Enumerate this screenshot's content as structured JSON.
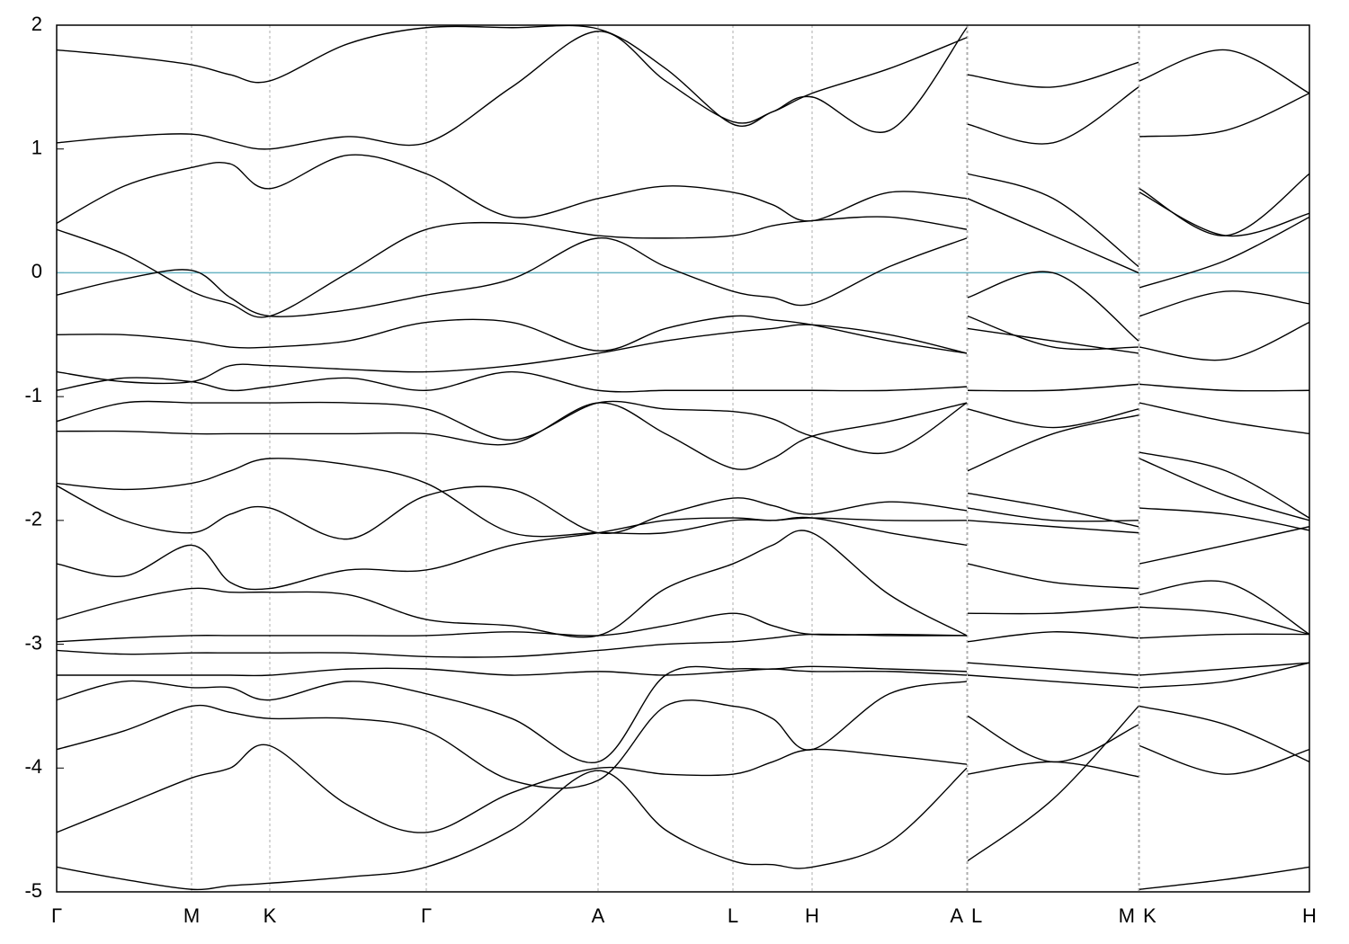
{
  "chart_data": {
    "type": "line",
    "color": "#000000",
    "hline": {
      "value": 0,
      "color": "#6ab4c4"
    },
    "grid": true,
    "xlim": [
      0,
      13.93
    ],
    "ylim": [
      -5,
      2
    ],
    "yticks": [
      -5,
      -4,
      -3,
      -2,
      -1,
      0,
      1,
      2
    ],
    "xticks": [
      {
        "value": 0,
        "label": "Γ"
      },
      {
        "value": 1.5,
        "label": "M"
      },
      {
        "value": 2.37,
        "label": "K"
      },
      {
        "value": 4.11,
        "label": "Γ"
      },
      {
        "value": 6.02,
        "label": "A"
      },
      {
        "value": 7.52,
        "label": "L"
      },
      {
        "value": 8.4,
        "label": "H"
      },
      {
        "value": 10.12,
        "label": "A"
      },
      {
        "value": 10.13,
        "label": "L"
      },
      {
        "value": 12.03,
        "label": "M"
      },
      {
        "value": 12.04,
        "label": "K"
      },
      {
        "value": 13.93,
        "label": "H"
      }
    ],
    "x": [
      0,
      0.75,
      1.5,
      1.93,
      2.37,
      3.24,
      4.11,
      5.06,
      6.02,
      6.77,
      7.52,
      7.96,
      8.4,
      9.26,
      10.12,
      10.125,
      10.13,
      11.08,
      12.03,
      12.035,
      12.04,
      13.0,
      13.93
    ],
    "series": [
      {
        "values": [
          -4.8,
          -4.9,
          -4.98,
          -4.95,
          -4.93,
          -4.88,
          -4.8,
          -4.5,
          -4.02,
          -4.5,
          -4.75,
          -4.78,
          -4.8,
          -4.6,
          -4.0,
          null,
          -4.75,
          -4.25,
          -3.5,
          null,
          -4.98,
          -4.9,
          -4.8
        ]
      },
      {
        "values": [
          -4.52,
          -4.3,
          -4.08,
          -4.0,
          -3.82,
          -4.3,
          -4.52,
          -4.2,
          -4.0,
          -4.05,
          -4.05,
          -3.95,
          -3.85,
          -3.9,
          -3.97,
          null,
          -4.05,
          -3.95,
          -4.07,
          null,
          -3.82,
          -4.05,
          -3.85
        ]
      },
      {
        "values": [
          -3.85,
          -3.7,
          -3.5,
          -3.55,
          -3.6,
          -3.6,
          -3.7,
          -4.1,
          -4.1,
          -3.5,
          -3.5,
          -3.6,
          -3.85,
          -3.4,
          -3.3,
          null,
          -3.58,
          -3.95,
          -3.65,
          null,
          -3.5,
          -3.65,
          -3.95
        ]
      },
      {
        "values": [
          -3.45,
          -3.3,
          -3.35,
          -3.35,
          -3.45,
          -3.3,
          -3.4,
          -3.6,
          -3.95,
          -3.25,
          -3.2,
          -3.2,
          -3.18,
          -3.2,
          -3.22,
          null,
          -3.25,
          -3.3,
          -3.35,
          null,
          -3.35,
          -3.3,
          -3.15
        ]
      },
      {
        "values": [
          -3.25,
          -3.25,
          -3.25,
          -3.25,
          -3.25,
          -3.2,
          -3.2,
          -3.25,
          -3.22,
          -3.25,
          -3.22,
          -3.2,
          -3.22,
          -3.22,
          -3.25,
          null,
          -3.15,
          -3.2,
          -3.25,
          null,
          -3.25,
          -3.2,
          -3.15
        ]
      },
      {
        "values": [
          -3.05,
          -3.08,
          -3.07,
          -3.07,
          -3.07,
          -3.07,
          -3.1,
          -3.1,
          -3.05,
          -3.0,
          -2.98,
          -2.95,
          -2.92,
          -2.93,
          -2.93,
          null,
          -2.98,
          -2.9,
          -2.95,
          null,
          -2.95,
          -2.92,
          -2.92
        ]
      },
      {
        "values": [
          -2.98,
          -2.95,
          -2.93,
          -2.93,
          -2.93,
          -2.93,
          -2.93,
          -2.9,
          -2.93,
          -2.85,
          -2.75,
          -2.85,
          -2.92,
          -2.92,
          -2.93,
          null,
          -2.75,
          -2.75,
          -2.7,
          null,
          -2.7,
          -2.75,
          -2.92
        ]
      },
      {
        "values": [
          -2.8,
          -2.65,
          -2.55,
          -2.58,
          -2.58,
          -2.6,
          -2.8,
          -2.85,
          -2.93,
          -2.55,
          -2.35,
          -2.2,
          -2.1,
          -2.6,
          -2.93,
          null,
          -2.35,
          -2.5,
          -2.55,
          null,
          -2.6,
          -2.5,
          -2.92
        ]
      },
      {
        "values": [
          -2.35,
          -2.45,
          -2.2,
          -2.5,
          -2.55,
          -2.4,
          -2.4,
          -2.2,
          -2.1,
          -2.0,
          -1.98,
          -2.0,
          -1.98,
          -2.1,
          -2.2,
          null,
          -2.0,
          -2.05,
          -2.1,
          null,
          -2.35,
          -2.2,
          -2.05
        ]
      },
      {
        "values": [
          -1.72,
          -2.0,
          -2.1,
          -1.95,
          -1.9,
          -2.15,
          -1.8,
          -1.75,
          -2.1,
          -1.95,
          -1.82,
          -1.88,
          -1.95,
          -1.85,
          -1.92,
          null,
          -1.78,
          -1.9,
          -2.05,
          null,
          -1.9,
          -1.95,
          -2.08
        ]
      },
      {
        "values": [
          -1.7,
          -1.75,
          -1.7,
          -1.6,
          -1.5,
          -1.55,
          -1.7,
          -2.1,
          -2.1,
          -2.1,
          -2.0,
          -2.0,
          -1.98,
          -2.0,
          -2.0,
          null,
          -1.9,
          -2.0,
          -2.0,
          null,
          -1.5,
          -1.8,
          -2.0
        ]
      },
      {
        "values": [
          -1.28,
          -1.28,
          -1.3,
          -1.3,
          -1.3,
          -1.3,
          -1.3,
          -1.38,
          -1.05,
          -1.3,
          -1.58,
          -1.5,
          -1.32,
          -1.2,
          -1.05,
          null,
          -1.6,
          -1.3,
          -1.15,
          null,
          -1.45,
          -1.6,
          -1.98
        ]
      },
      {
        "values": [
          -1.2,
          -1.05,
          -1.05,
          -1.05,
          -1.05,
          -1.05,
          -1.1,
          -1.35,
          -1.05,
          -1.1,
          -1.12,
          -1.18,
          -1.32,
          -1.45,
          -1.05,
          null,
          -1.1,
          -1.25,
          -1.1,
          null,
          -1.05,
          -1.2,
          -1.3
        ]
      },
      {
        "values": [
          -0.95,
          -0.85,
          -0.88,
          -0.95,
          -0.92,
          -0.85,
          -0.95,
          -0.8,
          -0.95,
          -0.95,
          -0.95,
          -0.95,
          -0.95,
          -0.95,
          -0.92,
          null,
          -0.95,
          -0.95,
          -0.9,
          null,
          -0.9,
          -0.95,
          -0.95
        ]
      },
      {
        "values": [
          -0.8,
          -0.88,
          -0.88,
          -0.75,
          -0.75,
          -0.78,
          -0.8,
          -0.75,
          -0.65,
          -0.55,
          -0.48,
          -0.45,
          -0.42,
          -0.5,
          -0.65,
          null,
          -0.45,
          -0.55,
          -0.65,
          null,
          -0.6,
          -0.7,
          -0.4
        ]
      },
      {
        "values": [
          -0.5,
          -0.5,
          -0.55,
          -0.6,
          -0.6,
          -0.55,
          -0.4,
          -0.4,
          -0.63,
          -0.45,
          -0.35,
          -0.38,
          -0.42,
          -0.55,
          -0.65,
          null,
          -0.35,
          -0.6,
          -0.6,
          null,
          -0.35,
          -0.15,
          -0.25
        ]
      },
      {
        "values": [
          -0.18,
          -0.05,
          0.02,
          -0.2,
          -0.35,
          -0.3,
          -0.18,
          -0.05,
          0.28,
          0.05,
          -0.15,
          -0.2,
          -0.25,
          0.05,
          0.28,
          null,
          -0.2,
          0.0,
          -0.55,
          null,
          -0.12,
          0.1,
          0.45
        ]
      },
      {
        "values": [
          0.35,
          0.15,
          -0.15,
          -0.25,
          -0.35,
          0.0,
          0.35,
          0.4,
          0.3,
          0.28,
          0.3,
          0.38,
          0.42,
          0.45,
          0.35,
          null,
          0.6,
          0.3,
          0.0,
          null,
          0.65,
          0.3,
          0.48
        ]
      },
      {
        "values": [
          0.4,
          0.7,
          0.85,
          0.88,
          0.68,
          0.95,
          0.8,
          0.45,
          0.6,
          0.7,
          0.65,
          0.55,
          0.42,
          0.65,
          0.6,
          null,
          0.8,
          0.6,
          0.05,
          null,
          0.68,
          0.3,
          0.8
        ]
      },
      {
        "values": [
          1.05,
          1.1,
          1.12,
          1.05,
          1.0,
          1.1,
          1.05,
          1.5,
          1.95,
          1.55,
          1.22,
          1.3,
          1.45,
          1.65,
          1.9,
          null,
          1.2,
          1.05,
          1.5,
          null,
          1.1,
          1.15,
          1.45
        ]
      },
      {
        "values": [
          1.8,
          1.75,
          1.68,
          1.6,
          1.55,
          1.85,
          1.98,
          1.98,
          1.97,
          1.65,
          1.2,
          1.3,
          1.42,
          1.15,
          1.98,
          null,
          1.6,
          1.5,
          1.7,
          null,
          1.55,
          1.8,
          1.45
        ]
      }
    ]
  }
}
